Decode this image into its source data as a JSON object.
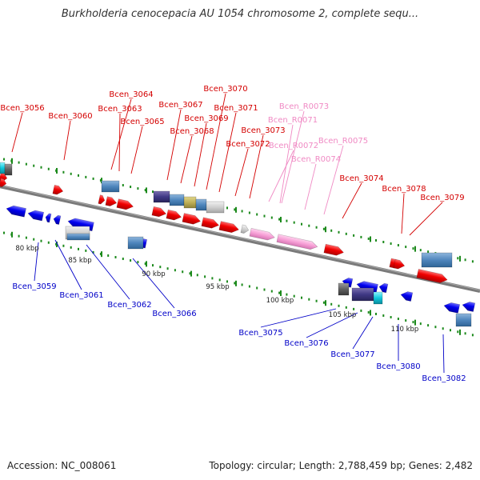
{
  "title": "Burkholderia cenocepacia AU 1054 chromosome 2, complete sequ...",
  "footer": {
    "accession": "Accession: NC_008061",
    "stats": "Topology: circular; Length: 2,788,459 bp; Genes: 2,482"
  },
  "colors": {
    "forward_label": "#d40000",
    "rna_label": "#f08ac4",
    "reverse_label": "#0000c8",
    "backbone": "#7a7a7a",
    "tick": "#1c8a1c"
  },
  "scale_labels": [
    "80 kbp",
    "85 kbp",
    "90 kbp",
    "95 kbp",
    "100 kbp",
    "105 kbp",
    "110 kbp"
  ],
  "forward_labels": [
    "Bcen_3056",
    "Bcen_3060",
    "Bcen_3064",
    "Bcen_3063",
    "Bcen_3065",
    "Bcen_3067",
    "Bcen_3068",
    "Bcen_3069",
    "Bcen_3070",
    "Bcen_3071",
    "Bcen_3073",
    "Bcen_3072",
    "Bcen_3074",
    "Bcen_3078",
    "Bcen_3079"
  ],
  "rna_labels": [
    "Bcen_R0073",
    "Bcen_R0071",
    "Bcen_R0072",
    "Bcen_R0075",
    "Bcen_R0074"
  ],
  "reverse_labels": [
    "Bcen_3059",
    "Bcen_3061",
    "Bcen_3062",
    "Bcen_3066",
    "Bcen_3075",
    "Bcen_3076",
    "Bcen_3077",
    "Bcen_3080",
    "Bcen_3082"
  ]
}
